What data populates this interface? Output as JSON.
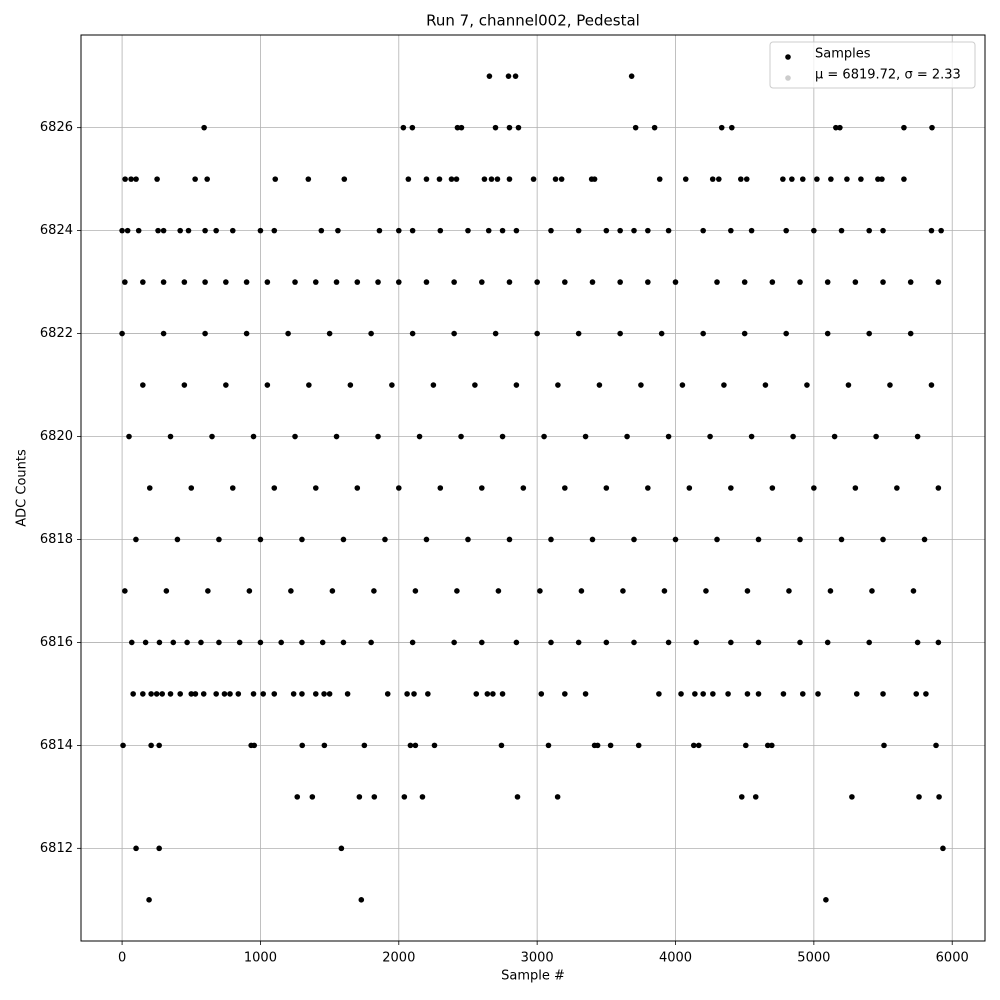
{
  "chart_data": {
    "type": "scatter",
    "title": "Run 7, channel002, Pedestal",
    "x_label": "Sample #",
    "y_label": "ADC Counts",
    "xlim": [
      -297,
      6237
    ],
    "ylim": [
      6810.2,
      6827.8
    ],
    "xticks": [
      0,
      1000,
      2000,
      3000,
      4000,
      5000,
      6000
    ],
    "yticks": [
      6812,
      6814,
      6816,
      6818,
      6820,
      6822,
      6824,
      6826
    ],
    "grid": true,
    "legend": "upper right",
    "series": [
      {
        "name": "Samples",
        "color": "#000000",
        "x": [
          2655,
          2793,
          2844,
          3683,
          593,
          2033,
          2098,
          2424,
          2453,
          2699,
          2800,
          2865,
          3712,
          3849,
          4334,
          4407,
          5159,
          5188,
          5651,
          5854,
          22,
          65,
          101,
          253,
          528,
          615,
          1107,
          1346,
          1606,
          2069,
          2200,
          2294,
          2381,
          2417,
          2619,
          2670,
          2713,
          2800,
          2974,
          3133,
          3177,
          3394,
          3415,
          3886,
          4074,
          4269,
          4313,
          4472,
          4515,
          4776,
          4841,
          4920,
          5022,
          5123,
          5239,
          5340,
          5463,
          5492,
          5651,
          0,
          40,
          120,
          260,
          300,
          420,
          480,
          600,
          680,
          800,
          1000,
          1100,
          1440,
          1560,
          1860,
          2000,
          2100,
          2300,
          2500,
          2650,
          2750,
          2850,
          3100,
          3300,
          3500,
          3600,
          3700,
          3800,
          3950,
          4200,
          4400,
          4550,
          4800,
          5000,
          5200,
          5400,
          5500,
          5850,
          5920,
          20,
          150,
          300,
          450,
          600,
          750,
          900,
          1050,
          1250,
          1400,
          1550,
          1700,
          1850,
          2000,
          2200,
          2400,
          2600,
          2800,
          3000,
          3200,
          3400,
          3600,
          3800,
          4000,
          4300,
          4500,
          4700,
          4900,
          5100,
          5300,
          5500,
          5700,
          5900,
          0,
          300,
          600,
          900,
          1200,
          1500,
          1800,
          2100,
          2400,
          2700,
          3000,
          3300,
          3600,
          3900,
          4200,
          4500,
          4800,
          5100,
          5400,
          5700,
          150,
          450,
          750,
          1050,
          1350,
          1650,
          1950,
          2250,
          2550,
          2850,
          3150,
          3450,
          3750,
          4050,
          4350,
          4650,
          4950,
          5250,
          5550,
          5850,
          50,
          350,
          650,
          950,
          1250,
          1550,
          1850,
          2150,
          2450,
          2750,
          3050,
          3350,
          3650,
          3950,
          4250,
          4550,
          4850,
          5150,
          5450,
          5750,
          200,
          500,
          800,
          1100,
          1400,
          1700,
          2000,
          2300,
          2600,
          2900,
          3200,
          3500,
          3800,
          4100,
          4400,
          4700,
          5000,
          5300,
          5600,
          5900,
          100,
          400,
          700,
          1000,
          1300,
          1600,
          1900,
          2200,
          2500,
          2800,
          3100,
          3400,
          3700,
          4000,
          4300,
          4600,
          4900,
          5200,
          5500,
          5800,
          20,
          320,
          620,
          920,
          1220,
          1520,
          1820,
          2120,
          2420,
          2720,
          3020,
          3320,
          3620,
          3920,
          4220,
          4520,
          4820,
          5120,
          5420,
          5720,
          70,
          170,
          270,
          370,
          470,
          570,
          700,
          850,
          1000,
          1150,
          1300,
          1450,
          1600,
          1800,
          2100,
          2400,
          2600,
          2850,
          3100,
          3300,
          3500,
          3700,
          3950,
          4150,
          4400,
          4600,
          4900,
          5100,
          5400,
          5750,
          5900,
          80,
          150,
          210,
          250,
          290,
          350,
          420,
          500,
          530,
          590,
          680,
          740,
          780,
          840,
          950,
          1020,
          1100,
          1240,
          1300,
          1400,
          1460,
          1500,
          1630,
          1920,
          2060,
          2110,
          2210,
          2560,
          2640,
          2680,
          2750,
          3030,
          3200,
          3350,
          3880,
          4040,
          4140,
          4200,
          4270,
          4380,
          4520,
          4600,
          4780,
          4920,
          5030,
          5310,
          5500,
          5740,
          5810,
          7,
          210,
          268,
          933,
          955,
          1302,
          1462,
          1751,
          2084,
          2120,
          2258,
          2742,
          3082,
          3415,
          3437,
          3531,
          3734,
          4132,
          4168,
          4508,
          4667,
          4696,
          5507,
          5883,
          1266,
          1375,
          1715,
          1823,
          2040,
          2171,
          2858,
          3148,
          4479,
          4580,
          5275,
          5760,
          5905,
          101,
          268,
          1585,
          5933,
          195,
          1729,
          5087
        ],
        "values": [
          6827,
          6827,
          6827,
          6827,
          6826,
          6826,
          6826,
          6826,
          6826,
          6826,
          6826,
          6826,
          6826,
          6826,
          6826,
          6826,
          6826,
          6826,
          6826,
          6826,
          6825,
          6825,
          6825,
          6825,
          6825,
          6825,
          6825,
          6825,
          6825,
          6825,
          6825,
          6825,
          6825,
          6825,
          6825,
          6825,
          6825,
          6825,
          6825,
          6825,
          6825,
          6825,
          6825,
          6825,
          6825,
          6825,
          6825,
          6825,
          6825,
          6825,
          6825,
          6825,
          6825,
          6825,
          6825,
          6825,
          6825,
          6825,
          6825,
          6824,
          6824,
          6824,
          6824,
          6824,
          6824,
          6824,
          6824,
          6824,
          6824,
          6824,
          6824,
          6824,
          6824,
          6824,
          6824,
          6824,
          6824,
          6824,
          6824,
          6824,
          6824,
          6824,
          6824,
          6824,
          6824,
          6824,
          6824,
          6824,
          6824,
          6824,
          6824,
          6824,
          6824,
          6824,
          6824,
          6824,
          6824,
          6824,
          6823,
          6823,
          6823,
          6823,
          6823,
          6823,
          6823,
          6823,
          6823,
          6823,
          6823,
          6823,
          6823,
          6823,
          6823,
          6823,
          6823,
          6823,
          6823,
          6823,
          6823,
          6823,
          6823,
          6823,
          6823,
          6823,
          6823,
          6823,
          6823,
          6823,
          6823,
          6823,
          6823,
          6822,
          6822,
          6822,
          6822,
          6822,
          6822,
          6822,
          6822,
          6822,
          6822,
          6822,
          6822,
          6822,
          6822,
          6822,
          6822,
          6822,
          6822,
          6822,
          6822,
          6821,
          6821,
          6821,
          6821,
          6821,
          6821,
          6821,
          6821,
          6821,
          6821,
          6821,
          6821,
          6821,
          6821,
          6821,
          6821,
          6821,
          6821,
          6821,
          6821,
          6820,
          6820,
          6820,
          6820,
          6820,
          6820,
          6820,
          6820,
          6820,
          6820,
          6820,
          6820,
          6820,
          6820,
          6820,
          6820,
          6820,
          6820,
          6820,
          6820,
          6819,
          6819,
          6819,
          6819,
          6819,
          6819,
          6819,
          6819,
          6819,
          6819,
          6819,
          6819,
          6819,
          6819,
          6819,
          6819,
          6819,
          6819,
          6819,
          6819,
          6818,
          6818,
          6818,
          6818,
          6818,
          6818,
          6818,
          6818,
          6818,
          6818,
          6818,
          6818,
          6818,
          6818,
          6818,
          6818,
          6818,
          6818,
          6818,
          6818,
          6817,
          6817,
          6817,
          6817,
          6817,
          6817,
          6817,
          6817,
          6817,
          6817,
          6817,
          6817,
          6817,
          6817,
          6817,
          6817,
          6817,
          6817,
          6817,
          6817,
          6816,
          6816,
          6816,
          6816,
          6816,
          6816,
          6816,
          6816,
          6816,
          6816,
          6816,
          6816,
          6816,
          6816,
          6816,
          6816,
          6816,
          6816,
          6816,
          6816,
          6816,
          6816,
          6816,
          6816,
          6816,
          6816,
          6816,
          6816,
          6816,
          6816,
          6816,
          6815,
          6815,
          6815,
          6815,
          6815,
          6815,
          6815,
          6815,
          6815,
          6815,
          6815,
          6815,
          6815,
          6815,
          6815,
          6815,
          6815,
          6815,
          6815,
          6815,
          6815,
          6815,
          6815,
          6815,
          6815,
          6815,
          6815,
          6815,
          6815,
          6815,
          6815,
          6815,
          6815,
          6815,
          6815,
          6815,
          6815,
          6815,
          6815,
          6815,
          6815,
          6815,
          6815,
          6815,
          6815,
          6815,
          6815,
          6815,
          6815,
          6814,
          6814,
          6814,
          6814,
          6814,
          6814,
          6814,
          6814,
          6814,
          6814,
          6814,
          6814,
          6814,
          6814,
          6814,
          6814,
          6814,
          6814,
          6814,
          6814,
          6814,
          6814,
          6814,
          6814,
          6813,
          6813,
          6813,
          6813,
          6813,
          6813,
          6813,
          6813,
          6813,
          6813,
          6813,
          6813,
          6813,
          6812,
          6812,
          6812,
          6812,
          6811,
          6811,
          6811
        ]
      },
      {
        "name": "μ = 6819.72, σ = 2.33",
        "color": "#cccccc",
        "x": [],
        "values": []
      }
    ]
  }
}
